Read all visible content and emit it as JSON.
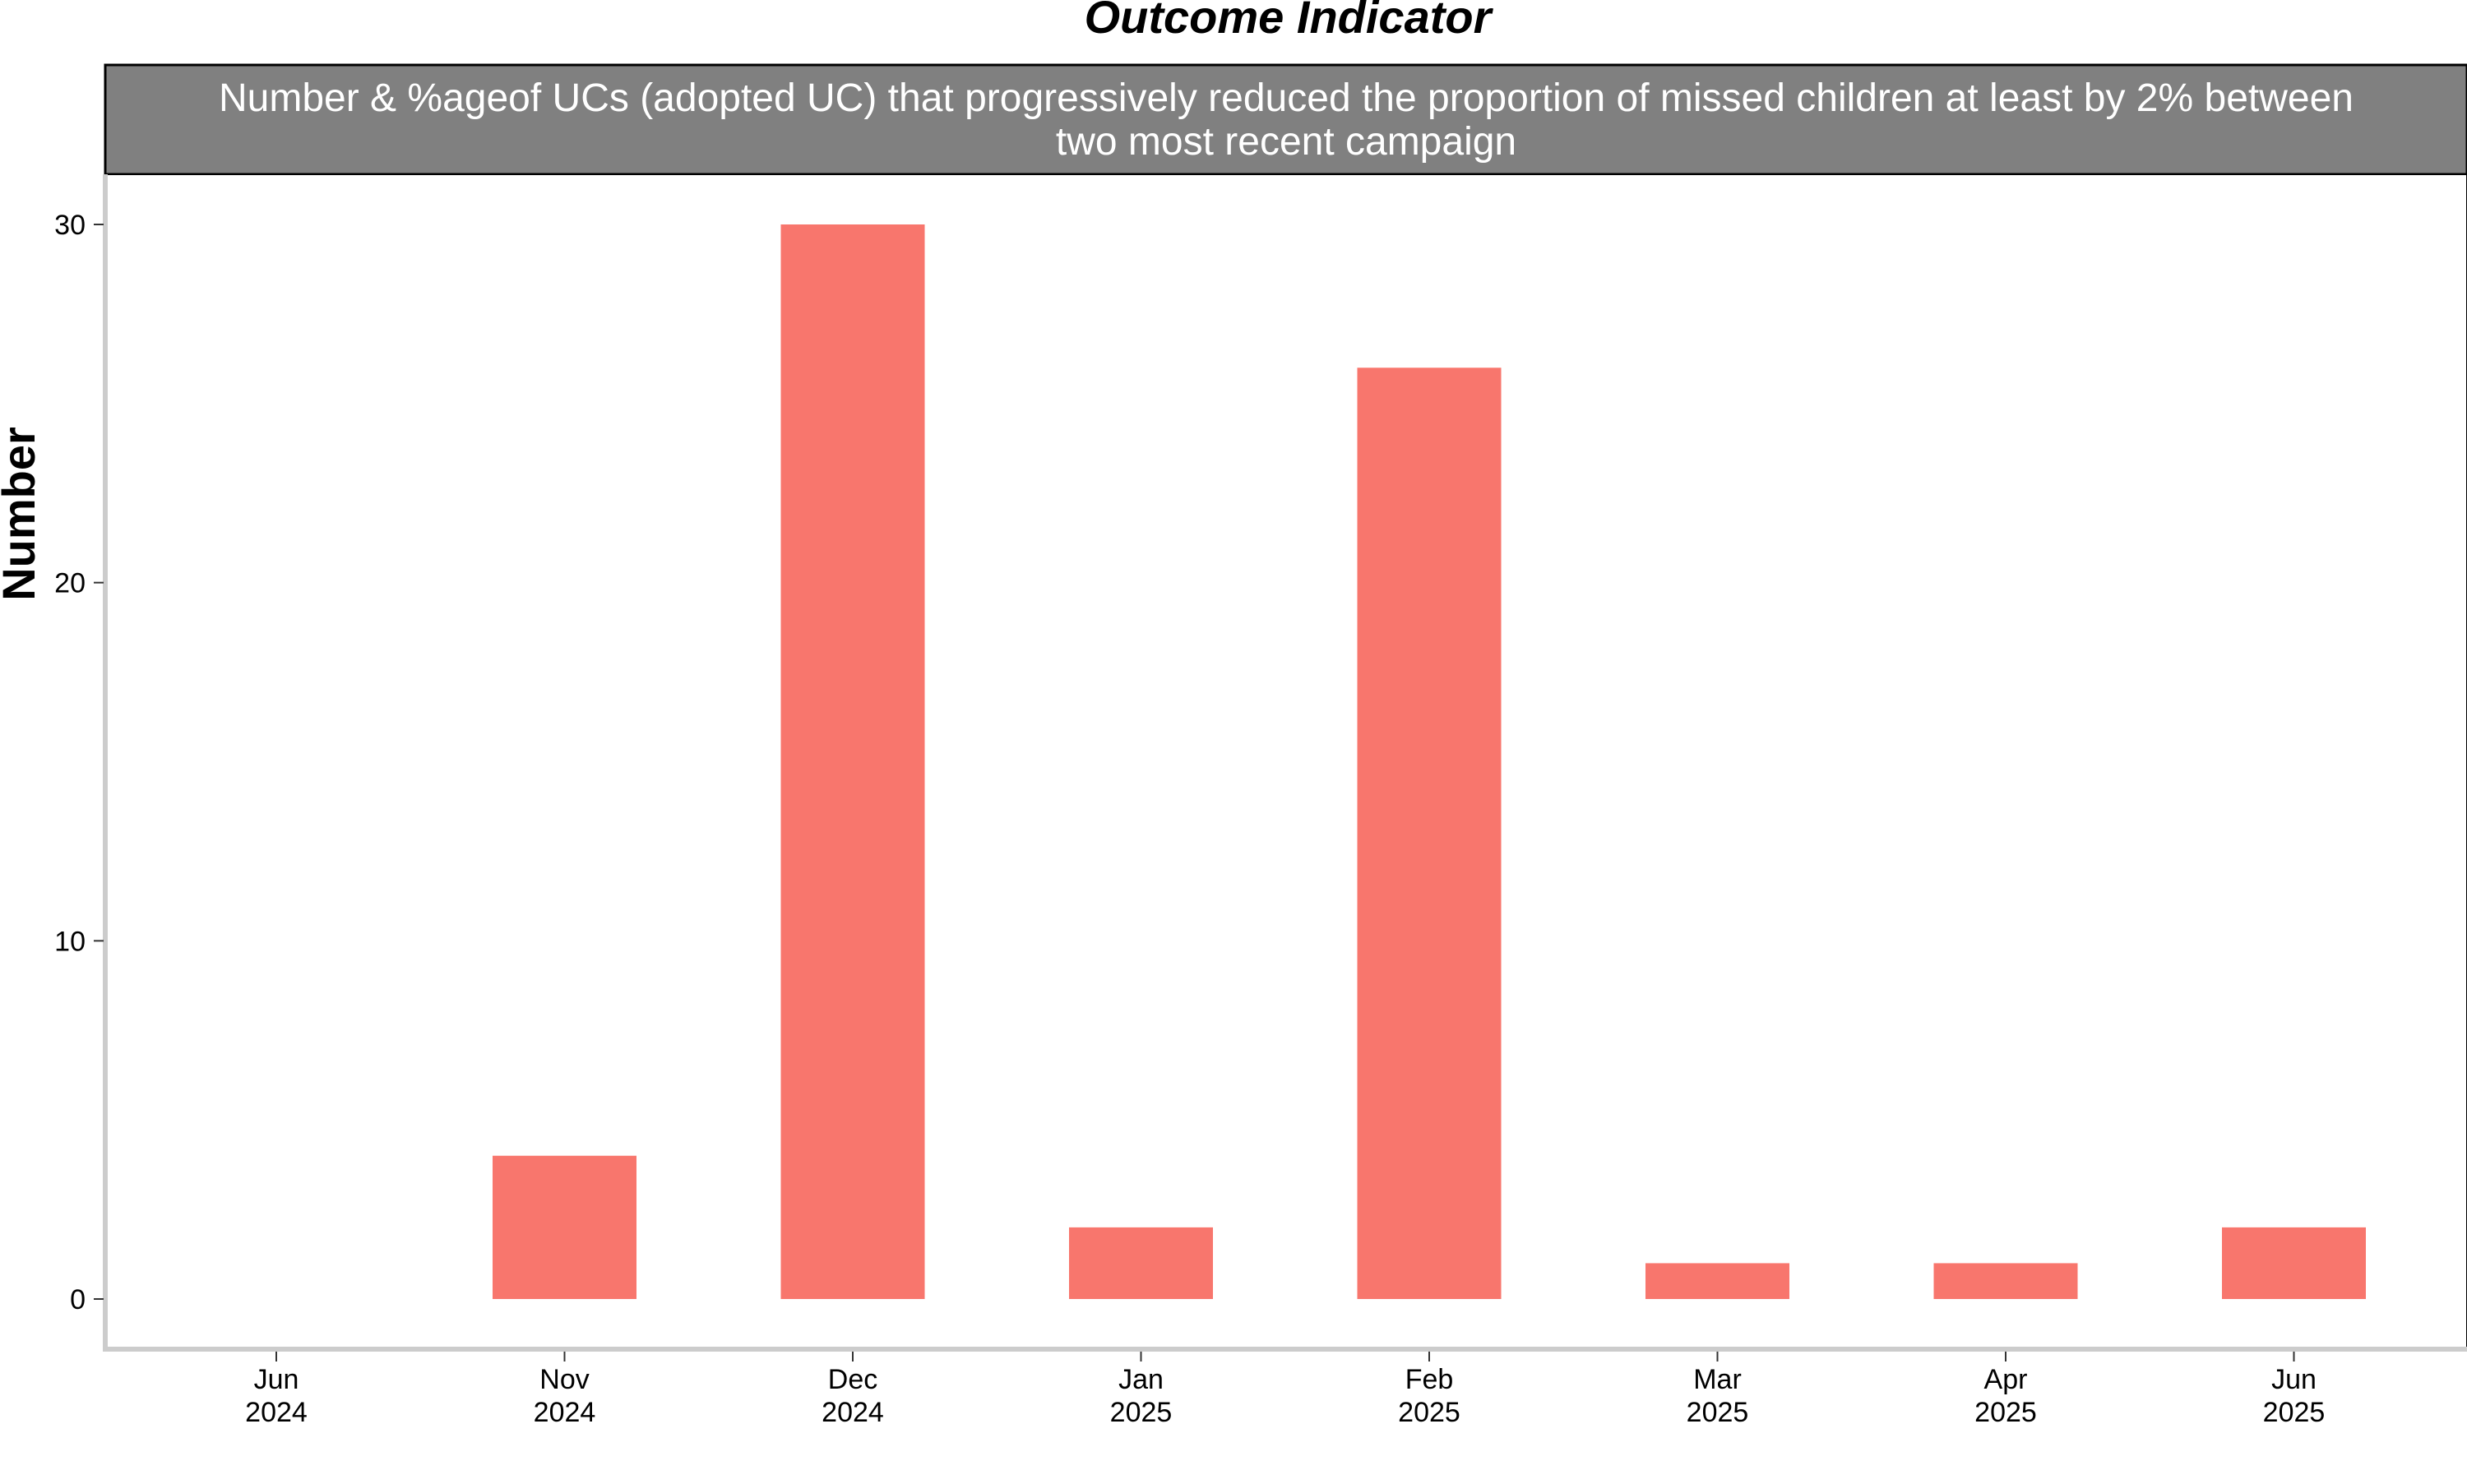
{
  "chart_data": {
    "type": "bar",
    "title": "Outcome Indicator",
    "subtitle_lines": [
      "Number & %ageof UCs (adopted UC) that progressively reduced the proportion of missed children at least by 2% between",
      "two most recent campaign"
    ],
    "xlabel": "",
    "ylabel": "Number",
    "categories": [
      {
        "month": "Jun",
        "year": "2024"
      },
      {
        "month": "Nov",
        "year": "2024"
      },
      {
        "month": "Dec",
        "year": "2024"
      },
      {
        "month": "Jan",
        "year": "2025"
      },
      {
        "month": "Feb",
        "year": "2025"
      },
      {
        "month": "Mar",
        "year": "2025"
      },
      {
        "month": "Apr",
        "year": "2025"
      },
      {
        "month": "Jun",
        "year": "2025"
      }
    ],
    "values": [
      0,
      4,
      30,
      2,
      26,
      1,
      1,
      2
    ],
    "yticks": [
      "0",
      "10",
      "20",
      "30"
    ],
    "ylim": [
      -1.4,
      31.4
    ],
    "grid": false,
    "legend": "none",
    "colors": {
      "bar": "#F8766D",
      "strip_bg": "#808080",
      "strip_text": "#FFFFFF",
      "axis_line": "#CCCCCC",
      "panel_border": "#000000"
    }
  }
}
